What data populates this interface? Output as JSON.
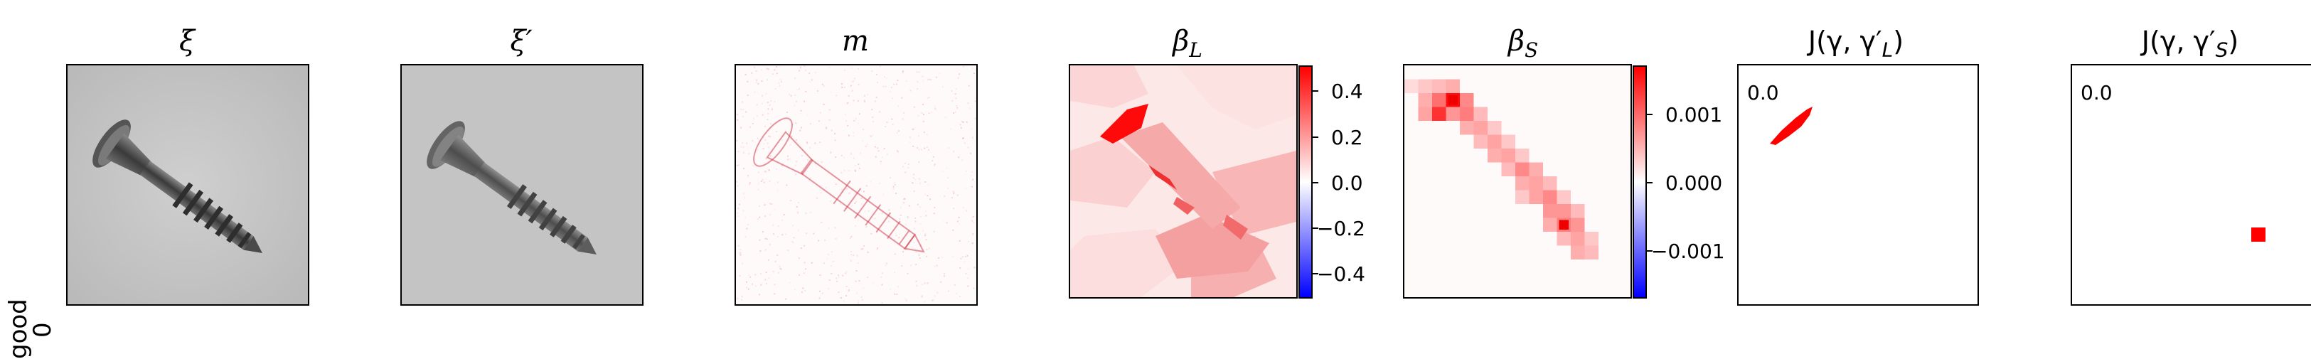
{
  "row_label": {
    "line1": "good",
    "line2": "0"
  },
  "titles": {
    "xi": "ξ",
    "xi_prime": "ξ′",
    "m": "m",
    "beta_L_base": "β",
    "beta_L_sub": "L",
    "beta_S_base": "β",
    "beta_S_sub": "S",
    "J_L": "J(γ, γ′",
    "J_L_sub": "L",
    "J_S": "J(γ, γ′",
    "J_S_sub": "S",
    "close_paren": ")"
  },
  "colorbar_L": {
    "ticks": [
      "0.4",
      "0.2",
      "0.0",
      "−0.2",
      "−0.4"
    ],
    "range": [
      -0.5,
      0.5
    ],
    "colormap": "bwr"
  },
  "colorbar_S": {
    "ticks": [
      "0.001",
      "0.000",
      "−0.001"
    ],
    "range": [
      -0.0017,
      0.0017
    ],
    "colormap": "bwr"
  },
  "J_L_value": "0.0",
  "J_S_value": "0.0",
  "colors": {
    "red": "#ff0000",
    "blue": "#0000ff"
  }
}
